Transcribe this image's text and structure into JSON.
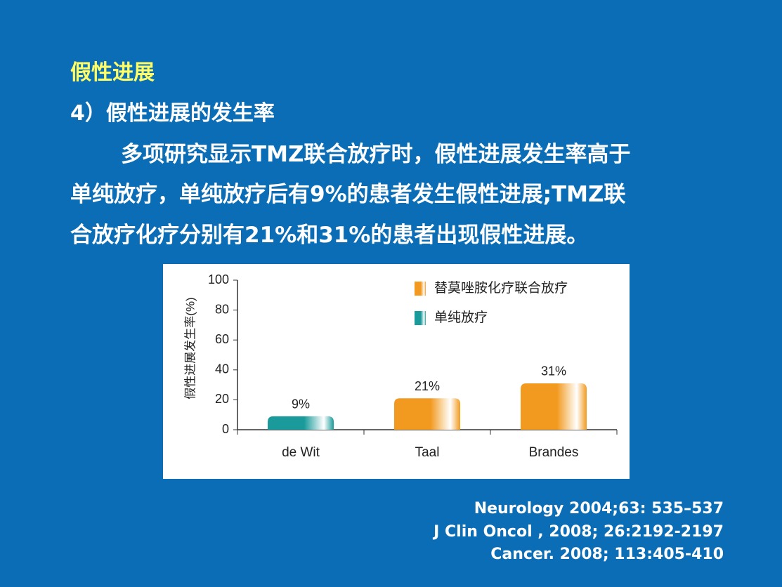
{
  "slide": {
    "title": "假性进展",
    "subtitle": "4）假性进展的发生率",
    "paragraph": [
      "多项研究显示TMZ联合放疗时，假性进展发生率高于",
      "单纯放疗，单纯放疗后有9%的患者发生假性进展;TMZ联",
      "合放疗化疗分别有21%和31%的患者出现假性进展。"
    ],
    "references": [
      "Neurology 2004;63: 535–537",
      "J Clin Oncol , 2008; 26:2192-2197",
      "Cancer. 2008; 113:405-410"
    ]
  },
  "chart_data": {
    "type": "bar",
    "y_label": "假性进展发生率(%)",
    "categories": [
      "de Wit",
      "Taal",
      "Brandes"
    ],
    "series": [
      {
        "name": "替莫唑胺化疗联合放疗",
        "color": "#f29a1f",
        "values": [
          null,
          21,
          31
        ],
        "value_labels": [
          null,
          "21%",
          "31%"
        ]
      },
      {
        "name": "单纯放疗",
        "color": "#1a9a9a",
        "values": [
          9,
          null,
          null
        ],
        "value_labels": [
          "9%",
          null,
          null
        ]
      }
    ],
    "ylim": [
      0,
      100
    ],
    "yticks": [
      0,
      20,
      40,
      60,
      80,
      100
    ],
    "grid": false
  }
}
